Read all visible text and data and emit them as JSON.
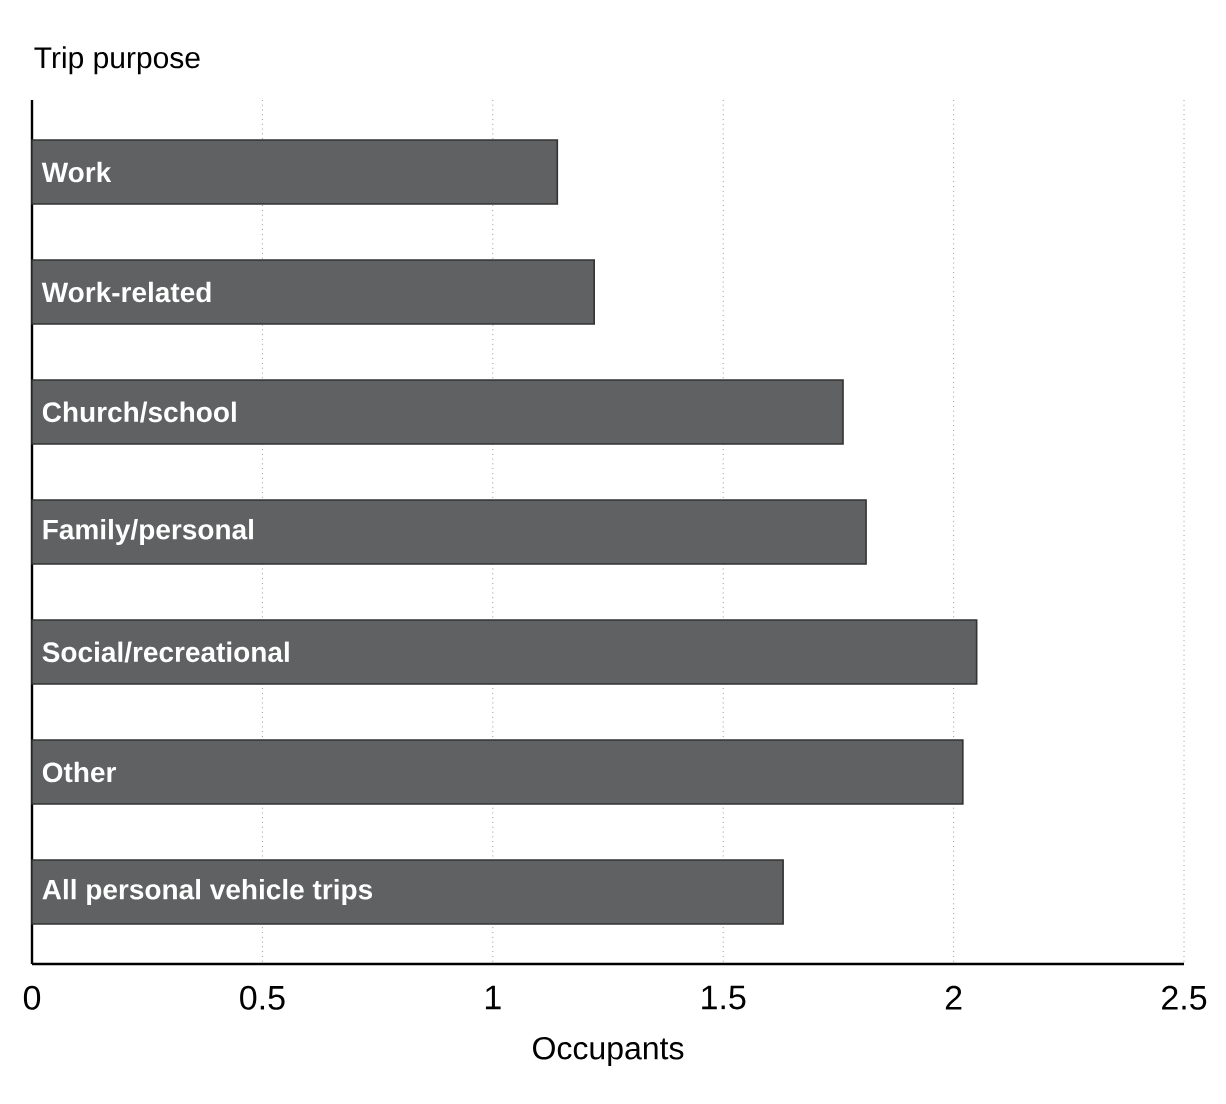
{
  "chart_data": {
    "type": "bar",
    "orientation": "horizontal",
    "ylabel": "Trip purpose",
    "xlabel": "Occupants",
    "categories": [
      "Work",
      "Work-related",
      "Church/school",
      "Family/personal",
      "Social/recreational",
      "Other",
      "All personal vehicle trips"
    ],
    "values": [
      1.14,
      1.22,
      1.76,
      1.81,
      2.05,
      2.02,
      1.63
    ],
    "color": "#606163",
    "xlim": [
      0,
      2.5
    ],
    "xticks": [
      0,
      0.5,
      1,
      1.5,
      2,
      2.5
    ],
    "grid": "x"
  }
}
